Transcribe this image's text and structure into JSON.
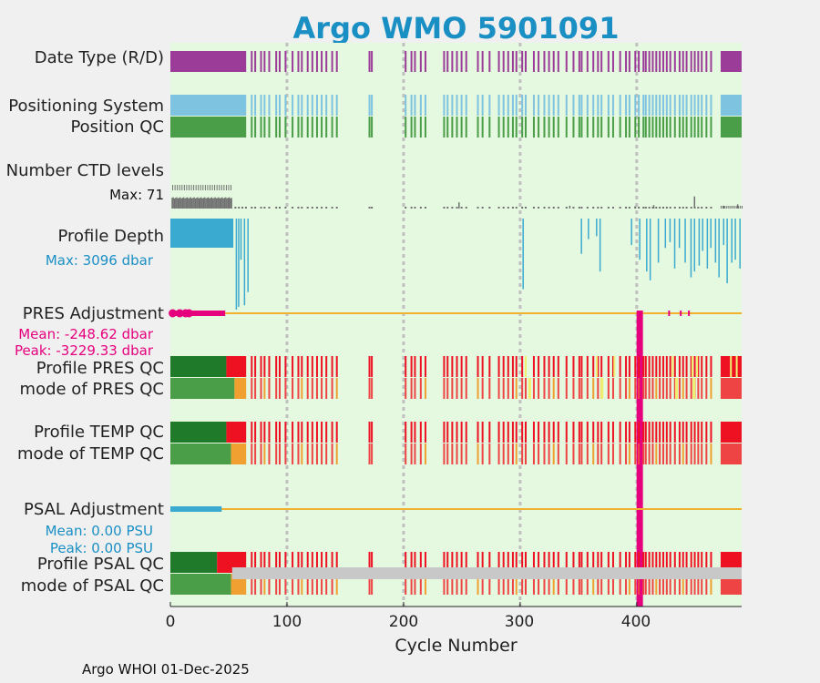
{
  "title": "Argo WMO 5901091",
  "footer": "Argo WHOI 01-Dec-2025",
  "rows": {
    "date_type": "Date Type (R/D)",
    "positioning": "Positioning System",
    "position_qc": "Position QC",
    "ctd_levels": "Number CTD levels",
    "ctd_max": "Max: 71",
    "profile_depth": "Profile Depth",
    "depth_max": "Max: 3096 dbar",
    "pres_adj": "PRES Adjustment",
    "pres_mean": "Mean: -248.62 dbar",
    "pres_peak": "Peak: -3229.33 dbar",
    "pres_qc": "Profile PRES QC",
    "pres_mode": "mode of PRES QC",
    "temp_qc": "Profile TEMP QC",
    "temp_mode": "mode of TEMP QC",
    "psal_adj": "PSAL Adjustment",
    "psal_mean": "Mean: 0.00 PSU",
    "psal_peak": "Peak: 0.00 PSU",
    "psal_qc": "Profile PSAL QC",
    "psal_mode": "mode of PSAL QC"
  },
  "chart_data": {
    "type": "bar",
    "title": "Argo WMO 5901091",
    "xlabel": "Cycle Number",
    "xlim": [
      0,
      490
    ],
    "xticks": [
      0,
      100,
      200,
      300,
      400
    ],
    "colors": {
      "background": "#e5f8e0",
      "date_type": "#9b3d98",
      "positioning": "#7ec4e0",
      "position_qc": "#4a9e47",
      "ctd": "#707070",
      "depth": "#3aaad0",
      "pres_adj": "#e6007e",
      "psal_adj": "#3aaad0",
      "adj_line": "#f0b030",
      "qc_good": "#1f7a2a",
      "qc_good_mode": "#4a9e47",
      "qc_bad": "#ee1122",
      "qc_bad_mode": "#ee4444",
      "qc_probably": "#f0a030",
      "qc_yellow": "#f0f070",
      "qc_gray": "#c8c8c8",
      "grid": "#c0c0c0"
    },
    "ctd_max": 71,
    "depth_max_dbar": 3096,
    "pres_adj_mean": -248.62,
    "pres_adj_peak": -3229.33,
    "pres_adj_peak_cycle": 403,
    "psal_adj_mean": 0.0,
    "psal_adj_peak": 0.0,
    "continuous_until": 65,
    "qc_bad_from": 48,
    "sparse_cycles": [
      69,
      72,
      77,
      80,
      84,
      90,
      93,
      98,
      104,
      109,
      112,
      117,
      121,
      125,
      129,
      133,
      138,
      142,
      170,
      172,
      201,
      206,
      209,
      214,
      218,
      234,
      237,
      241,
      245,
      249,
      253,
      263,
      267,
      273,
      281,
      285,
      289,
      293,
      296,
      301,
      304,
      311,
      315,
      320,
      324,
      328,
      332,
      339,
      345,
      350,
      352,
      357,
      362,
      366,
      369,
      375,
      379,
      385,
      390,
      393,
      398,
      401,
      405,
      407,
      410,
      413,
      416,
      419,
      422,
      425,
      428,
      432,
      436,
      439,
      442,
      446,
      449,
      452,
      455,
      459,
      463
    ],
    "dense_blocks": [
      [
        472,
        490
      ]
    ],
    "depth_cycles": [
      56,
      58,
      60,
      63,
      66,
      302,
      352,
      358,
      365,
      368,
      395,
      402,
      408,
      411,
      418,
      424,
      428,
      432,
      436,
      441,
      446,
      449,
      453,
      456,
      460,
      463,
      467,
      470,
      474,
      477,
      481,
      484,
      488
    ],
    "depth_values": [
      3096,
      3000,
      1400,
      2950,
      2500,
      2400,
      1200,
      700,
      600,
      1800,
      900,
      1400,
      1800,
      2100,
      1500,
      1000,
      800,
      1700,
      1000,
      1500,
      2000,
      1800,
      1600,
      1100,
      1700,
      1000,
      1500,
      2000,
      900,
      2200,
      1500,
      1400,
      1700
    ],
    "ctd_spikes": [
      [
        247,
        22
      ],
      [
        342,
        10
      ],
      [
        398,
        8
      ],
      [
        414,
        12
      ],
      [
        449,
        43
      ],
      [
        474,
        10
      ],
      [
        486,
        15
      ]
    ]
  }
}
